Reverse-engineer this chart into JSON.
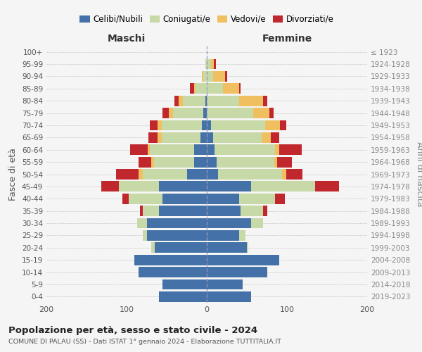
{
  "age_groups": [
    "0-4",
    "5-9",
    "10-14",
    "15-19",
    "20-24",
    "25-29",
    "30-34",
    "35-39",
    "40-44",
    "45-49",
    "50-54",
    "55-59",
    "60-64",
    "65-69",
    "70-74",
    "75-79",
    "80-84",
    "85-89",
    "90-94",
    "95-99",
    "100+"
  ],
  "birth_years": [
    "2019-2023",
    "2014-2018",
    "2009-2013",
    "2004-2008",
    "1999-2003",
    "1994-1998",
    "1989-1993",
    "1984-1988",
    "1979-1983",
    "1974-1978",
    "1969-1973",
    "1964-1968",
    "1959-1963",
    "1954-1958",
    "1949-1953",
    "1944-1948",
    "1939-1943",
    "1934-1938",
    "1929-1933",
    "1924-1928",
    "≤ 1923"
  ],
  "male": {
    "celibi": [
      60,
      55,
      85,
      90,
      65,
      75,
      75,
      60,
      55,
      60,
      25,
      16,
      16,
      8,
      6,
      4,
      2,
      0,
      0,
      0,
      0
    ],
    "coniugati": [
      0,
      0,
      0,
      0,
      4,
      5,
      12,
      20,
      42,
      50,
      55,
      50,
      55,
      48,
      50,
      38,
      28,
      14,
      4,
      2,
      0
    ],
    "vedovi": [
      0,
      0,
      0,
      0,
      0,
      0,
      0,
      0,
      0,
      0,
      5,
      3,
      3,
      5,
      5,
      5,
      5,
      2,
      2,
      0,
      0
    ],
    "divorziati": [
      0,
      0,
      0,
      0,
      0,
      0,
      0,
      3,
      8,
      22,
      28,
      16,
      22,
      12,
      10,
      8,
      5,
      5,
      0,
      0,
      0
    ]
  },
  "female": {
    "nubili": [
      55,
      45,
      75,
      90,
      50,
      40,
      55,
      42,
      40,
      55,
      14,
      12,
      10,
      8,
      5,
      0,
      0,
      0,
      0,
      0,
      0
    ],
    "coniugate": [
      0,
      0,
      0,
      0,
      2,
      8,
      15,
      28,
      45,
      80,
      80,
      72,
      75,
      60,
      68,
      58,
      40,
      20,
      8,
      5,
      0
    ],
    "vedove": [
      0,
      0,
      0,
      0,
      0,
      0,
      0,
      0,
      0,
      0,
      5,
      4,
      5,
      12,
      18,
      20,
      30,
      20,
      15,
      4,
      0
    ],
    "divorziate": [
      0,
      0,
      0,
      0,
      0,
      0,
      0,
      5,
      12,
      30,
      20,
      18,
      28,
      10,
      8,
      5,
      5,
      2,
      2,
      2,
      0
    ]
  },
  "colors": {
    "celibi": "#4472a8",
    "coniugati": "#c8d9a8",
    "vedovi": "#f0c060",
    "divorziati": "#c0282d"
  },
  "legend_labels": [
    "Celibi/Nubili",
    "Coniugati/e",
    "Vedovi/e",
    "Divorziati/e"
  ],
  "title_main": "Popolazione per età, sesso e stato civile - 2024",
  "title_sub": "COMUNE DI PALAU (SS) - Dati ISTAT 1° gennaio 2024 - Elaborazione TUTTITALIA.IT",
  "xlabel_left": "Maschi",
  "xlabel_right": "Femmine",
  "ylabel_left": "Fasce di età",
  "ylabel_right": "Anni di nascita",
  "xlim": 200,
  "background_color": "#f5f5f5",
  "bar_height": 0.85
}
